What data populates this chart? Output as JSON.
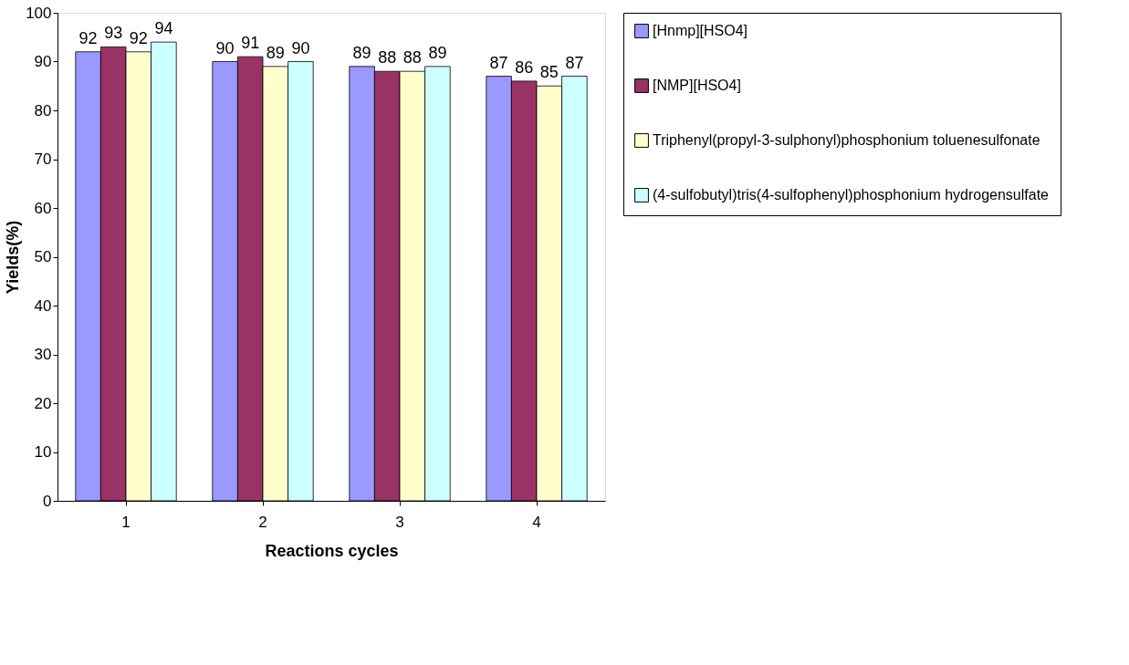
{
  "chart_data": {
    "type": "bar",
    "xlabel": "Reactions cycles",
    "ylabel": "Yields(%)",
    "categories": [
      "1",
      "2",
      "3",
      "4"
    ],
    "series": [
      {
        "name": "[Hnmp][HSO4]",
        "color": "#9999ff",
        "values": [
          92,
          90,
          89,
          87
        ]
      },
      {
        "name": "[NMP][HSO4]",
        "color": "#993366",
        "values": [
          93,
          91,
          88,
          86
        ]
      },
      {
        "name": "Triphenyl(propyl-3-sulphonyl)phosphonium toluenesulfonate",
        "color": "#ffffcc",
        "values": [
          92,
          89,
          88,
          85
        ]
      },
      {
        "name": "(4-sulfobutyl)tris(4-sulfophenyl)phosphonium hydrogensulfate",
        "color": "#ccffff",
        "values": [
          94,
          90,
          89,
          87
        ]
      }
    ],
    "ylim": [
      0,
      100
    ],
    "yticks": [
      0,
      10,
      20,
      30,
      40,
      50,
      60,
      70,
      80,
      90,
      100
    ],
    "grid": false,
    "legend": "right",
    "data_labels": true
  }
}
